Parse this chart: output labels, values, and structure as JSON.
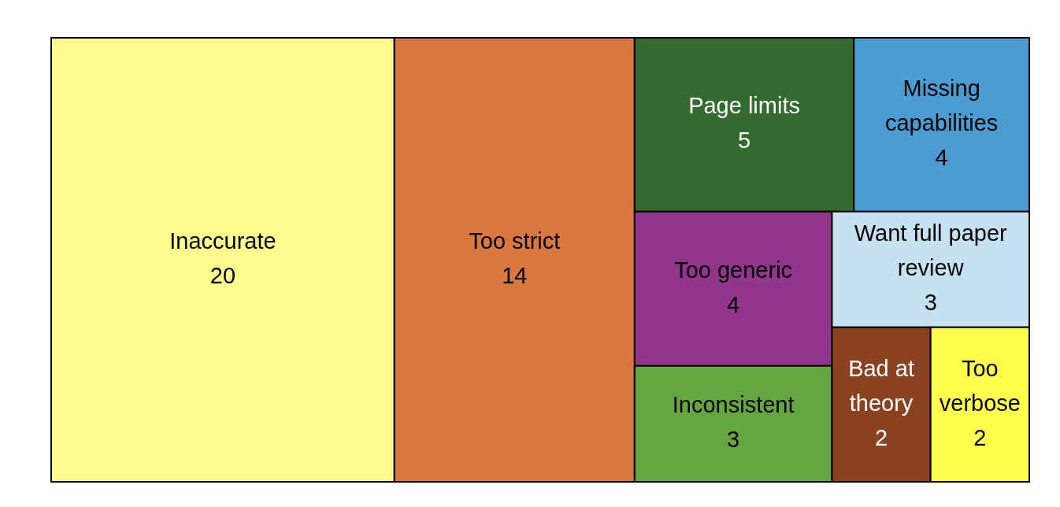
{
  "chart_data": {
    "type": "other",
    "data_labels": true,
    "categories": [
      "Inaccurate",
      "Too strict",
      "Page limits",
      "Missing capabilities",
      "Too generic",
      "Inconsistent",
      "Want full paper review",
      "Bad at theory",
      "Too verbose"
    ],
    "values": [
      20,
      14,
      5,
      4,
      4,
      3,
      3,
      2,
      2
    ],
    "colors": [
      "#fffa8c",
      "#d97740",
      "#336b2f",
      "#4a9cd2",
      "#92358c",
      "#66a640",
      "#c6e2f2",
      "#8b4221",
      "#ffff4c"
    ]
  }
}
